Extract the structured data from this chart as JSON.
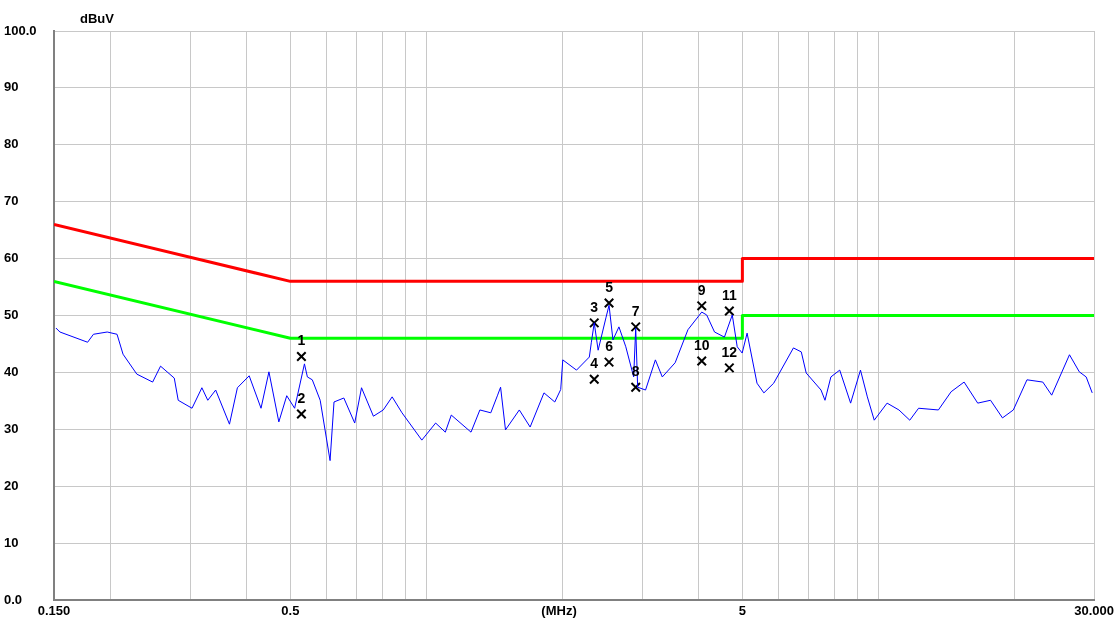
{
  "chart_data": {
    "type": "line",
    "xlabel": "(MHz)",
    "ylabel": "dBuV",
    "xlim": [
      0.15,
      30
    ],
    "ylim": [
      0,
      100
    ],
    "log": "x",
    "grid": true,
    "legend": false,
    "xticks": [
      {
        "value": 0.15,
        "label": "0.150"
      },
      {
        "value": 0.2,
        "label": null
      },
      {
        "value": 0.3,
        "label": null
      },
      {
        "value": 0.4,
        "label": null
      },
      0.5,
      {
        "value": 0.6,
        "label": null
      },
      {
        "value": 0.7,
        "label": null
      },
      {
        "value": 0.8,
        "label": null
      },
      {
        "value": 0.9,
        "label": null
      },
      {
        "value": 1,
        "label": null
      },
      {
        "value": 2,
        "label": null
      },
      {
        "value": 3,
        "label": null
      },
      {
        "value": 4,
        "label": null
      },
      5,
      {
        "value": 6,
        "label": null
      },
      {
        "value": 7,
        "label": null
      },
      {
        "value": 8,
        "label": null
      },
      {
        "value": 9,
        "label": null
      },
      {
        "value": 10,
        "label": null
      },
      {
        "value": 20,
        "label": null
      },
      {
        "value": 30,
        "label": "30.000"
      }
    ],
    "yticks": [
      {
        "value": 0,
        "label": "0.0"
      },
      10,
      20,
      30,
      40,
      50,
      60,
      70,
      80,
      90,
      {
        "value": 100,
        "label": "100.0"
      }
    ],
    "series": [
      {
        "color": "#0000ff",
        "x": [
          0.1515,
          0.1546,
          0.178,
          0.1834,
          0.1967,
          0.2068,
          0.2132,
          0.2287,
          0.2479,
          0.2581,
          0.2768,
          0.2824,
          0.303,
          0.3186,
          0.3283,
          0.3418,
          0.3667,
          0.3818,
          0.4054,
          0.4306,
          0.4483,
          0.4715,
          0.4909,
          0.511,
          0.5372,
          0.5453,
          0.5591,
          0.5821,
          0.6121,
          0.6245,
          0.6566,
          0.694,
          0.7185,
          0.7633,
          0.8026,
          0.8398,
          0.883,
          0.9768,
          1.048,
          1.101,
          1.135,
          1.255,
          1.313,
          1.388,
          1.437,
          1.459,
          1.496,
          1.605,
          1.696,
          1.82,
          1.923,
          1.982,
          2.003,
          2.148,
          2.293,
          2.316,
          2.351,
          2.398,
          2.497,
          2.535,
          2.586,
          2.666,
          2.761,
          2.874,
          2.904,
          2.933,
          3.053,
          3.21,
          3.325,
          3.55,
          3.789,
          4.065,
          4.168,
          4.339,
          4.563,
          4.749,
          4.87,
          4.995,
          5.122,
          5.387,
          5.579,
          5.865,
          6.485,
          6.75,
          6.921,
          7.464,
          7.616,
          7.848,
          8.21,
          8.678,
          9.125,
          9.45,
          9.788,
          10.45,
          11.1,
          11.73,
          12.27,
          13.57,
          14.48,
          15.47,
          16.58,
          17.7,
          18.81,
          19.88,
          21.31,
          23.1,
          24.17,
          26.46,
          27.82,
          28.81,
          29.71
        ],
        "values": [
          47.8,
          47.1,
          45.3,
          46.7,
          47.1,
          46.7,
          43.2,
          39.7,
          38.3,
          41.1,
          39.0,
          35.1,
          33.7,
          37.3,
          35.1,
          36.9,
          30.9,
          37.3,
          39.4,
          33.7,
          40.1,
          31.3,
          35.9,
          33.7,
          41.5,
          39.2,
          38.7,
          35.1,
          24.5,
          34.8,
          35.5,
          31.1,
          37.3,
          32.3,
          33.4,
          35.7,
          32.9,
          28.1,
          31.1,
          29.5,
          32.5,
          29.5,
          33.4,
          32.9,
          36.0,
          37.4,
          29.9,
          33.4,
          30.4,
          36.4,
          34.8,
          37.0,
          42.2,
          40.4,
          42.7,
          45.2,
          48.7,
          43.9,
          49.7,
          51.8,
          45.7,
          48.0,
          44.5,
          39.2,
          47.8,
          37.4,
          36.9,
          42.2,
          39.2,
          41.7,
          47.5,
          50.6,
          50.1,
          47.1,
          46.2,
          50.1,
          44.5,
          43.4,
          46.9,
          38.1,
          36.4,
          38.1,
          44.3,
          43.6,
          39.9,
          36.9,
          35.1,
          39.2,
          40.4,
          34.6,
          40.4,
          35.7,
          31.6,
          34.6,
          33.4,
          31.6,
          33.7,
          33.4,
          36.6,
          38.3,
          34.6,
          35.1,
          32.0,
          33.4,
          38.7,
          38.3,
          36.0,
          43.1,
          40.1,
          39.2,
          36.4
        ]
      },
      {
        "color": "#ff0000",
        "x": [
          0.15,
          0.5,
          5,
          5,
          30
        ],
        "values": [
          66,
          56,
          56,
          60,
          60
        ]
      },
      {
        "color": "#00ff00",
        "x": [
          0.15,
          0.5,
          5,
          5,
          30
        ],
        "values": [
          56,
          46,
          46,
          50,
          50
        ]
      },
      {
        "type": "scatter",
        "color": "#000000",
        "marker": "cross",
        "x": [
          0.529,
          0.529,
          2.351,
          2.351,
          2.535,
          2.535,
          2.904,
          2.904,
          4.065,
          4.065,
          4.679,
          4.679
        ],
        "values": [
          42.8,
          32.7,
          48.7,
          38.8,
          52.2,
          41.8,
          48.0,
          37.4,
          51.7,
          42.0,
          50.8,
          40.8
        ]
      }
    ],
    "annotations": [
      {
        "text": "1",
        "x": 0.529,
        "y": 42.8
      },
      {
        "text": "2",
        "x": 0.529,
        "y": 32.7
      },
      {
        "text": "3",
        "x": 2.351,
        "y": 48.7
      },
      {
        "text": "4",
        "x": 2.351,
        "y": 38.8
      },
      {
        "text": "5",
        "x": 2.535,
        "y": 52.2
      },
      {
        "text": "6",
        "x": 2.535,
        "y": 41.8
      },
      {
        "text": "7",
        "x": 2.904,
        "y": 48.0
      },
      {
        "text": "8",
        "x": 2.904,
        "y": 37.4
      },
      {
        "text": "9",
        "x": 4.065,
        "y": 51.7
      },
      {
        "text": "10",
        "x": 4.065,
        "y": 42.0
      },
      {
        "text": "11",
        "x": 4.679,
        "y": 50.8
      },
      {
        "text": "12",
        "x": 4.679,
        "y": 40.8
      }
    ]
  }
}
